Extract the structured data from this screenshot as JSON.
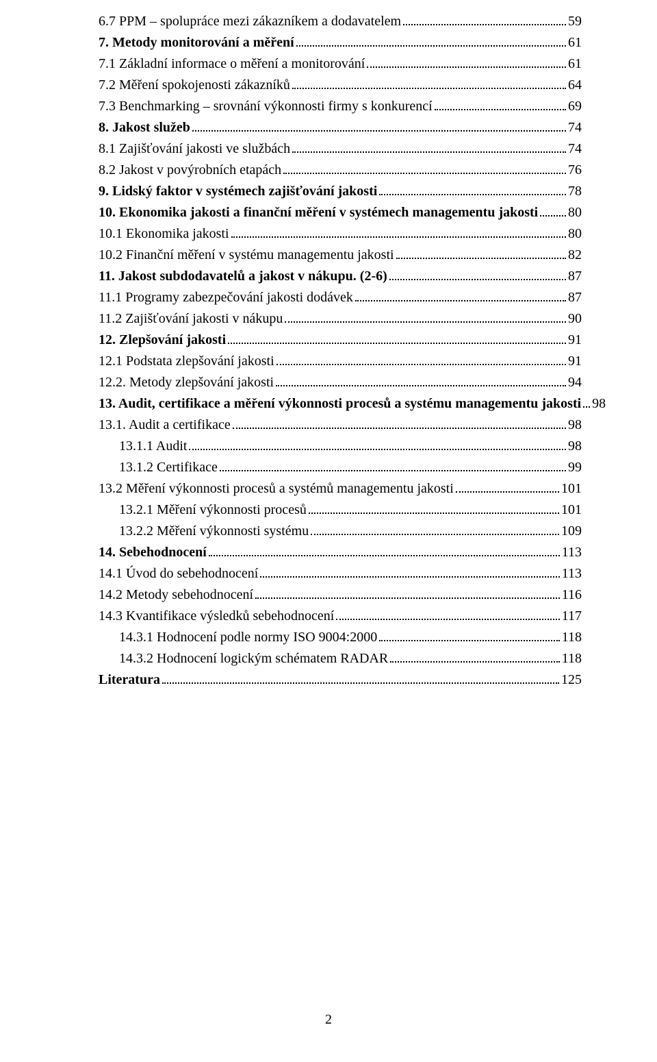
{
  "pageNumber": "2",
  "toc": [
    {
      "label": "6.7 PPM – spolupráce mezi zákazníkem a dodavatelem",
      "page": "59",
      "bold": false,
      "indent": 0
    },
    {
      "label": "7. Metody monitorování a měření",
      "page": "61",
      "bold": true,
      "indent": 0
    },
    {
      "label": "7.1 Základní informace o měření a monitorování",
      "page": "61",
      "bold": false,
      "indent": 0
    },
    {
      "label": "7.2 Měření spokojenosti zákazníků",
      "page": "64",
      "bold": false,
      "indent": 0
    },
    {
      "label": "7.3 Benchmarking – srovnání výkonnosti firmy s konkurencí",
      "page": "69",
      "bold": false,
      "indent": 0
    },
    {
      "label": "8. Jakost služeb",
      "page": "74",
      "bold": true,
      "indent": 0
    },
    {
      "label": "8.1 Zajišťování jakosti ve službách",
      "page": "74",
      "bold": false,
      "indent": 0
    },
    {
      "label": "8.2 Jakost v povýrobních etapách",
      "page": "76",
      "bold": false,
      "indent": 0
    },
    {
      "label": "9. Lidský faktor v systémech zajišťování jakosti",
      "page": "78",
      "bold": true,
      "indent": 0
    },
    {
      "label": "10. Ekonomika jakosti a finanční měření v systémech managementu jakosti",
      "page": "80",
      "bold": true,
      "indent": 0
    },
    {
      "label": "10.1 Ekonomika jakosti",
      "page": "80",
      "bold": false,
      "indent": 0
    },
    {
      "label": "10.2 Finanční měření v systému managementu jakosti",
      "page": "82",
      "bold": false,
      "indent": 0
    },
    {
      "label": "11. Jakost subdodavatelů a jakost v nákupu. (2-6)",
      "page": "87",
      "bold": true,
      "indent": 0
    },
    {
      "label": "11.1 Programy zabezpečování jakosti dodávek",
      "page": "87",
      "bold": false,
      "indent": 0
    },
    {
      "label": "11.2 Zajišťování jakosti v nákupu",
      "page": "90",
      "bold": false,
      "indent": 0
    },
    {
      "label": "12. Zlepšování jakosti",
      "page": "91",
      "bold": true,
      "indent": 0
    },
    {
      "label": "12.1 Podstata zlepšování jakosti",
      "page": "91",
      "bold": false,
      "indent": 0
    },
    {
      "label": "12.2. Metody zlepšování jakosti",
      "page": "94",
      "bold": false,
      "indent": 0
    },
    {
      "label": "13. Audit, certifikace a měření výkonnosti procesů a systému managementu jakosti",
      "page": "98",
      "bold": true,
      "indent": 0
    },
    {
      "label": "13.1. Audit a certifikace",
      "page": "98",
      "bold": false,
      "indent": 0
    },
    {
      "label": "13.1.1 Audit",
      "page": "98",
      "bold": false,
      "indent": 1
    },
    {
      "label": "13.1.2 Certifikace",
      "page": "99",
      "bold": false,
      "indent": 1
    },
    {
      "label": "13.2 Měření výkonnosti procesů a systémů managementu jakosti",
      "page": "101",
      "bold": false,
      "indent": 0
    },
    {
      "label": "13.2.1 Měření výkonnosti procesů",
      "page": "101",
      "bold": false,
      "indent": 1
    },
    {
      "label": "13.2.2 Měření výkonnosti systému",
      "page": "109",
      "bold": false,
      "indent": 1
    },
    {
      "label": "14. Sebehodnocení",
      "page": "113",
      "bold": true,
      "indent": 0
    },
    {
      "label": "14.1 Úvod do sebehodnocení",
      "page": "113",
      "bold": false,
      "indent": 0
    },
    {
      "label": "14.2 Metody sebehodnocení",
      "page": "116",
      "bold": false,
      "indent": 0
    },
    {
      "label": "14.3 Kvantifikace výsledků sebehodnocení",
      "page": "117",
      "bold": false,
      "indent": 0
    },
    {
      "label": "14.3.1 Hodnocení podle normy ISO 9004:2000",
      "page": "118",
      "bold": false,
      "indent": 1
    },
    {
      "label": "14.3.2 Hodnocení logickým schématem RADAR",
      "page": "118",
      "bold": false,
      "indent": 1
    },
    {
      "label": "Literatura",
      "page": "125",
      "bold": true,
      "indent": 0
    }
  ]
}
